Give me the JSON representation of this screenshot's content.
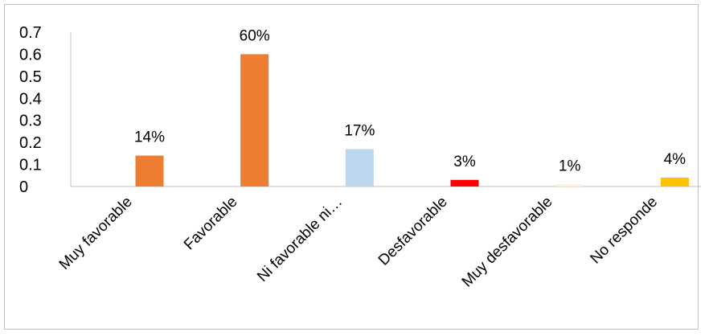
{
  "chart_data": {
    "type": "bar",
    "categories": [
      "Muy favorable",
      "Favorable",
      "Ni favorable ni…",
      "Desfavorable",
      "Muy desfavorable",
      "No responde"
    ],
    "values": [
      0.14,
      0.6,
      0.17,
      0.03,
      0.01,
      0.04
    ],
    "data_labels": [
      "14%",
      "60%",
      "17%",
      "3%",
      "1%",
      "4%"
    ],
    "bar_colors": [
      "#ED7D31",
      "#ED7D31",
      "#BDD7EE",
      "#FF0000",
      "#FFF2CC",
      "#FFC000"
    ],
    "y_ticks": [
      "0",
      "0.1",
      "0.2",
      "0.3",
      "0.4",
      "0.5",
      "0.6",
      "0.7"
    ],
    "ylim": [
      0,
      0.7
    ],
    "grid": false,
    "legend": "none"
  }
}
